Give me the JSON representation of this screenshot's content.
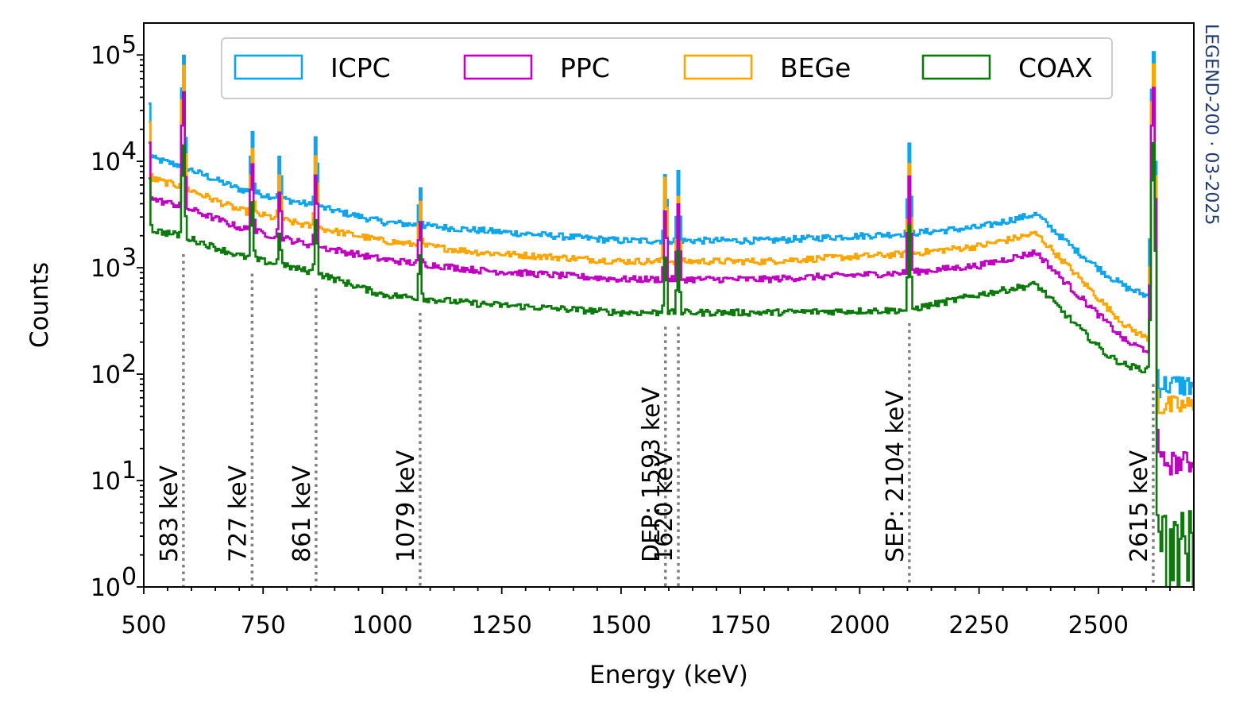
{
  "chart_data": {
    "type": "line",
    "xlabel": "Energy (keV)",
    "ylabel": "Counts",
    "xlim": [
      500,
      2700
    ],
    "ylim_log10": [
      0,
      5.3
    ],
    "yscale": "log",
    "x_ticks": [
      "500",
      "750",
      "1000",
      "1250",
      "1500",
      "1750",
      "2000",
      "2250",
      "2500"
    ],
    "x_tick_values": [
      500,
      750,
      1000,
      1250,
      1500,
      1750,
      2000,
      2250,
      2500
    ],
    "y_ticks": [
      {
        "base": "10",
        "exp": "0",
        "value": 1
      },
      {
        "base": "10",
        "exp": "1",
        "value": 10
      },
      {
        "base": "10",
        "exp": "2",
        "value": 100
      },
      {
        "base": "10",
        "exp": "3",
        "value": 1000
      },
      {
        "base": "10",
        "exp": "4",
        "value": 10000
      },
      {
        "base": "10",
        "exp": "5",
        "value": 100000
      }
    ],
    "legend_position": "top",
    "watermark": "LEGEND-200 · 03-2025",
    "continuum_knots_energy": [
      510,
      580,
      700,
      860,
      1000,
      1200,
      1500,
      1800,
      2100,
      2250,
      2370,
      2450,
      2520,
      2560,
      2600
    ],
    "series": [
      {
        "name": "ICPC",
        "color": "#0ea5ea",
        "continuum": [
          11000,
          9000,
          5500,
          3800,
          2700,
          2250,
          1800,
          1800,
          2100,
          2400,
          3200,
          1500,
          850,
          650,
          550
        ],
        "peaks": [
          40000,
          110000,
          17000,
          7800,
          16000,
          3900,
          6900,
          7000,
          14000,
          130000
        ],
        "tail": 80
      },
      {
        "name": "PPC",
        "color": "#c000c0",
        "continuum": [
          4500,
          3800,
          2400,
          1600,
          1200,
          950,
          780,
          780,
          900,
          1050,
          1400,
          600,
          300,
          200,
          170
        ],
        "peaks": [
          18000,
          50000,
          9000,
          4000,
          7000,
          1900,
          3200,
          3500,
          7000,
          60000
        ],
        "tail": 15
      },
      {
        "name": "BEGe",
        "color": "#ffa500",
        "continuum": [
          7000,
          5800,
          3500,
          2400,
          1800,
          1400,
          1150,
          1150,
          1350,
          1600,
          2100,
          900,
          420,
          280,
          220
        ],
        "peaks": [
          27000,
          90000,
          12000,
          5500,
          11000,
          3000,
          7200,
          3800,
          9000,
          100000
        ],
        "tail": 50
      },
      {
        "name": "COAX",
        "color": "#0b7a0b",
        "continuum": [
          2300,
          2000,
          1300,
          900,
          560,
          460,
          380,
          380,
          400,
          560,
          700,
          300,
          150,
          120,
          110
        ],
        "peaks": [
          8000,
          15000,
          3500,
          1300,
          2400,
          1000,
          1100,
          1200,
          2300,
          18000
        ],
        "tail": 3
      }
    ],
    "peak_energies": [
      510,
      583,
      727,
      785,
      861,
      1079,
      1593,
      1620,
      2104,
      2615
    ],
    "annotations": [
      {
        "energy": 583,
        "label": "583 keV"
      },
      {
        "energy": 727,
        "label": "727 keV"
      },
      {
        "energy": 861,
        "label": "861 keV"
      },
      {
        "energy": 1079,
        "label": "1079 keV"
      },
      {
        "energy": 1593,
        "label": "DEP: 1593 keV"
      },
      {
        "energy": 1620,
        "label": "1620 keV"
      },
      {
        "energy": 2104,
        "label": "SEP: 2104 keV"
      },
      {
        "energy": 2615,
        "label": "2615 keV"
      }
    ]
  }
}
